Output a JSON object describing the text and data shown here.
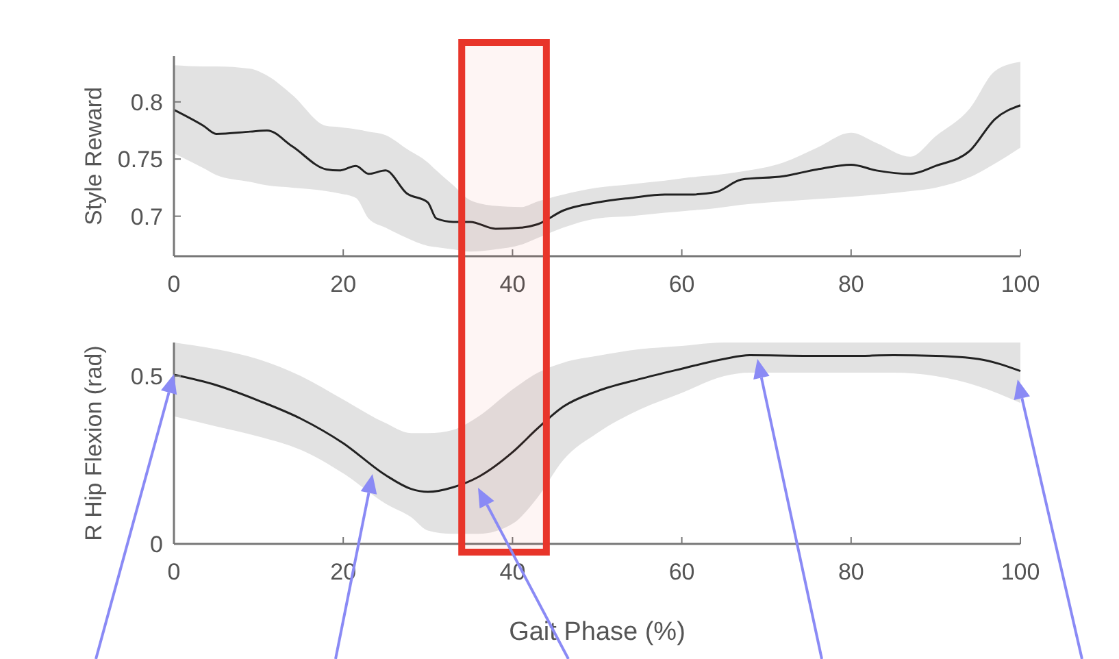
{
  "chart_data": [
    {
      "type": "line",
      "ylabel": "Style Reward",
      "xlim": [
        0,
        100
      ],
      "xticks": [
        0,
        20,
        40,
        60,
        80,
        100
      ],
      "ylim": [
        0.665,
        0.84
      ],
      "yticks": [
        0.7,
        0.75,
        0.8
      ],
      "grid": false,
      "bands": [
        {
          "axis": "x",
          "from": 34,
          "to": 44,
          "color": "#e8352a"
        }
      ],
      "series": [
        {
          "color": "#222222",
          "x": [
            0,
            3.5,
            5,
            9,
            11,
            14,
            18,
            19.5,
            21.5,
            23,
            25,
            27.5,
            30,
            31,
            33,
            35,
            38,
            41,
            43,
            46,
            50,
            54,
            58,
            61,
            64,
            67,
            72,
            76,
            80,
            83,
            87,
            90,
            94,
            97,
            100
          ],
          "values": [
            0.793,
            0.779,
            0.772,
            0.774,
            0.775,
            0.761,
            0.741,
            0.74,
            0.744,
            0.737,
            0.74,
            0.72,
            0.712,
            0.698,
            0.695,
            0.695,
            0.689,
            0.69,
            0.693,
            0.705,
            0.712,
            0.716,
            0.719,
            0.719,
            0.721,
            0.732,
            0.735,
            0.741,
            0.745,
            0.74,
            0.737,
            0.744,
            0.757,
            0.785,
            0.797
          ],
          "upper": [
            0.832,
            0.831,
            0.831,
            0.829,
            0.823,
            0.806,
            0.779,
            0.778,
            0.776,
            0.774,
            0.771,
            0.759,
            0.747,
            0.74,
            0.727,
            0.714,
            0.709,
            0.708,
            0.713,
            0.719,
            0.725,
            0.728,
            0.731,
            0.734,
            0.736,
            0.739,
            0.747,
            0.76,
            0.773,
            0.764,
            0.752,
            0.77,
            0.794,
            0.827,
            0.835
          ],
          "lower": [
            0.755,
            0.742,
            0.736,
            0.73,
            0.727,
            0.725,
            0.722,
            0.72,
            0.716,
            0.698,
            0.69,
            0.681,
            0.674,
            0.673,
            0.671,
            0.669,
            0.671,
            0.675,
            0.681,
            0.69,
            0.698,
            0.7,
            0.703,
            0.705,
            0.707,
            0.71,
            0.713,
            0.715,
            0.717,
            0.719,
            0.722,
            0.725,
            0.734,
            0.746,
            0.76
          ]
        }
      ]
    },
    {
      "type": "line",
      "xlabel": "Gait Phase (%)",
      "ylabel": "R Hip Flexion (rad)",
      "xlim": [
        0,
        100
      ],
      "xticks": [
        0,
        20,
        40,
        60,
        80,
        100
      ],
      "ylim": [
        0,
        0.6
      ],
      "yticks": [
        0,
        0.5
      ],
      "grid": false,
      "bands": [
        {
          "axis": "x",
          "from": 34,
          "to": 44,
          "color": "#e8352a"
        }
      ],
      "series": [
        {
          "color": "#222222",
          "x": [
            0,
            5,
            10,
            15,
            20,
            25,
            28,
            30,
            33,
            36,
            40,
            43,
            46,
            50,
            55,
            60,
            65,
            68,
            75,
            80,
            85,
            90,
            95,
            100
          ],
          "values": [
            0.504,
            0.473,
            0.427,
            0.373,
            0.3,
            0.205,
            0.164,
            0.155,
            0.169,
            0.2,
            0.273,
            0.345,
            0.409,
            0.455,
            0.491,
            0.522,
            0.551,
            0.562,
            0.56,
            0.56,
            0.562,
            0.56,
            0.551,
            0.515
          ],
          "upper": [
            0.6,
            0.58,
            0.55,
            0.5,
            0.43,
            0.36,
            0.33,
            0.33,
            0.34,
            0.38,
            0.46,
            0.51,
            0.54,
            0.56,
            0.58,
            0.59,
            0.6,
            0.6,
            0.6,
            0.6,
            0.6,
            0.6,
            0.6,
            0.6
          ],
          "lower": [
            0.38,
            0.35,
            0.32,
            0.28,
            0.21,
            0.12,
            0.08,
            0.04,
            0.03,
            0.03,
            0.06,
            0.14,
            0.25,
            0.33,
            0.4,
            0.45,
            0.5,
            0.51,
            0.51,
            0.51,
            0.51,
            0.5,
            0.47,
            0.42
          ]
        }
      ]
    }
  ]
}
